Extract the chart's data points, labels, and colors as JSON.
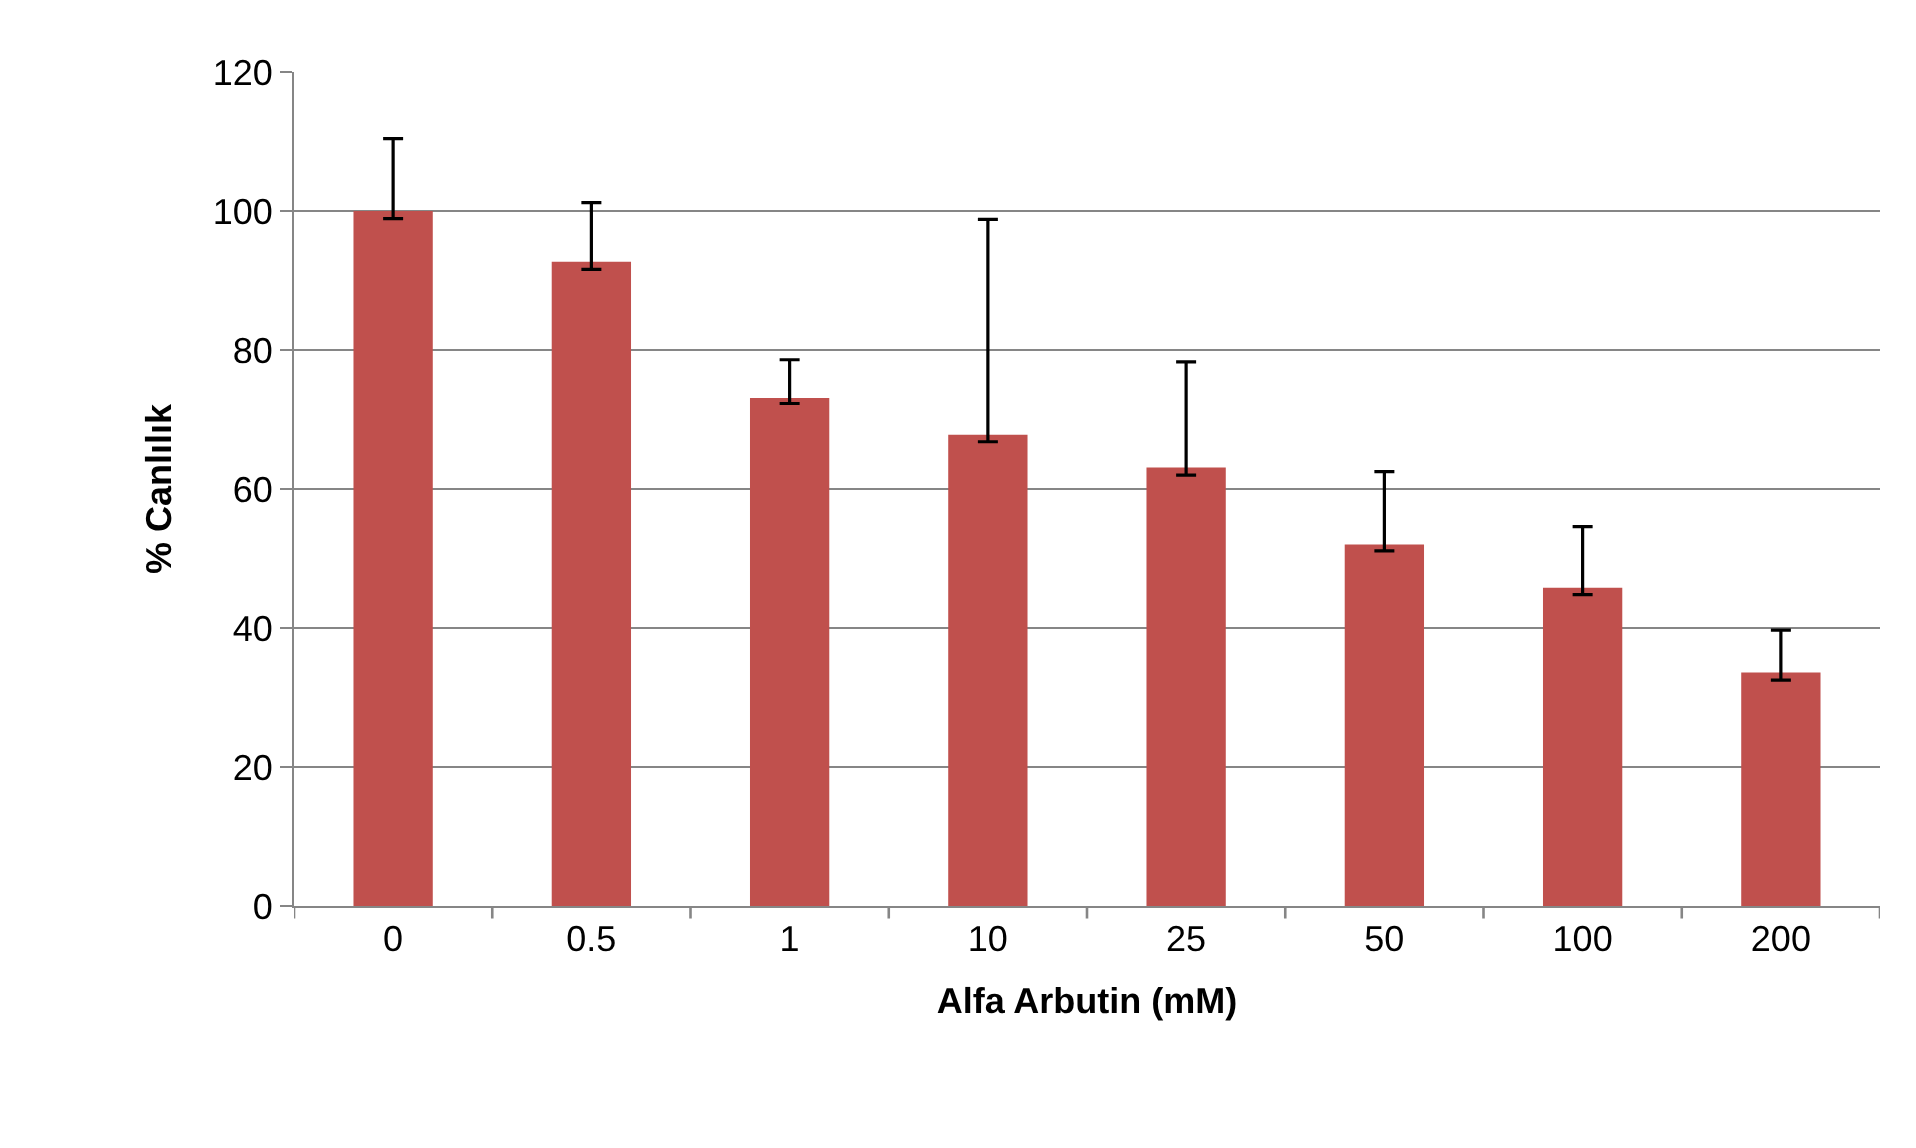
{
  "chart_data": {
    "type": "bar",
    "xlabel": "Alfa Arbutin (mM)",
    "ylabel": "% Canlılık",
    "categories": [
      "0",
      "0.5",
      "1",
      "10",
      "25",
      "50",
      "100",
      "200"
    ],
    "values": [
      100,
      92.7,
      73.1,
      67.8,
      63.1,
      52.0,
      45.8,
      33.6
    ],
    "errors": [
      [
        98.9,
        110.4
      ],
      [
        91.6,
        101.2
      ],
      [
        72.3,
        78.6
      ],
      [
        66.8,
        98.8
      ],
      [
        62.0,
        78.3
      ],
      [
        51.1,
        62.5
      ],
      [
        44.8,
        54.6
      ],
      [
        32.5,
        39.7
      ]
    ],
    "color": "#c0504d",
    "ylim": [
      0,
      120
    ],
    "yticks": [
      0,
      20,
      40,
      60,
      80,
      100,
      120
    ],
    "grid": "y"
  }
}
